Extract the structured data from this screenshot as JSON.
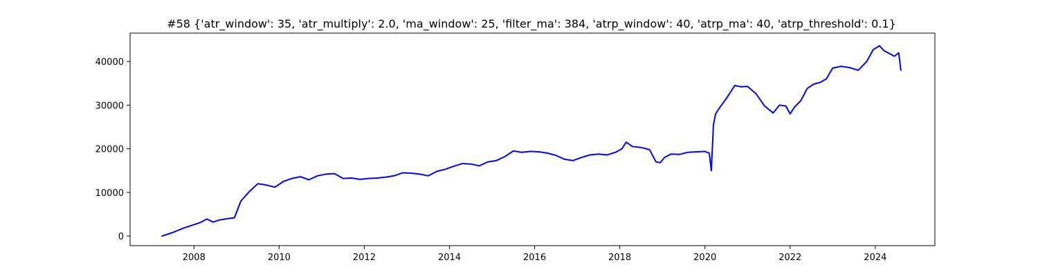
{
  "chart_data": {
    "type": "line",
    "title": "#58 {'atr_window': 35, 'atr_multiply': 2.0, 'ma_window': 25, 'filter_ma': 384, 'atrp_window': 40, 'atrp_ma': 40, 'atrp_threshold': 0.1}",
    "xlabel": "",
    "ylabel": "",
    "xlim": [
      2006.5,
      2025.4
    ],
    "ylim": [
      -2200,
      46500
    ],
    "xticks": [
      2008,
      2010,
      2012,
      2014,
      2016,
      2018,
      2020,
      2022,
      2024
    ],
    "xtick_labels": [
      "2008",
      "2010",
      "2012",
      "2014",
      "2016",
      "2018",
      "2020",
      "2022",
      "2024"
    ],
    "yticks": [
      0,
      10000,
      20000,
      30000,
      40000
    ],
    "ytick_labels": [
      "0",
      "10000",
      "20000",
      "30000",
      "40000"
    ],
    "grid": false,
    "line_color": "#0000ff",
    "series": [
      {
        "x": [
          2007.25,
          2007.5,
          2007.75,
          2008.0,
          2008.15,
          2008.3,
          2008.45,
          2008.6,
          2008.8,
          2008.95,
          2009.1,
          2009.3,
          2009.5,
          2009.7,
          2009.9,
          2010.1,
          2010.3,
          2010.5,
          2010.7,
          2010.9,
          2011.1,
          2011.3,
          2011.5,
          2011.7,
          2011.9,
          2012.1,
          2012.3,
          2012.5,
          2012.7,
          2012.9,
          2013.1,
          2013.3,
          2013.5,
          2013.7,
          2013.9,
          2014.1,
          2014.3,
          2014.5,
          2014.7,
          2014.9,
          2015.1,
          2015.3,
          2015.5,
          2015.7,
          2015.9,
          2016.1,
          2016.3,
          2016.5,
          2016.7,
          2016.9,
          2017.1,
          2017.3,
          2017.5,
          2017.7,
          2017.9,
          2018.05,
          2018.15,
          2018.3,
          2018.5,
          2018.7,
          2018.85,
          2018.95,
          2019.05,
          2019.2,
          2019.4,
          2019.6,
          2019.8,
          2020.0,
          2020.1,
          2020.15,
          2020.2,
          2020.25,
          2020.35,
          2020.5,
          2020.7,
          2020.85,
          2021.0,
          2021.2,
          2021.4,
          2021.6,
          2021.75,
          2021.9,
          2022.0,
          2022.1,
          2022.25,
          2022.4,
          2022.55,
          2022.7,
          2022.85,
          2023.0,
          2023.2,
          2023.4,
          2023.6,
          2023.8,
          2023.95,
          2024.1,
          2024.2,
          2024.3,
          2024.45,
          2024.55,
          2024.6
        ],
        "y": [
          0,
          800,
          1800,
          2600,
          3100,
          3900,
          3200,
          3700,
          4000,
          4200,
          8000,
          10200,
          12000,
          11700,
          11200,
          12500,
          13200,
          13600,
          12900,
          13800,
          14200,
          14300,
          13200,
          13300,
          13000,
          13200,
          13300,
          13500,
          13800,
          14500,
          14400,
          14200,
          13800,
          14800,
          15300,
          16000,
          16600,
          16500,
          16100,
          17000,
          17300,
          18200,
          19500,
          19200,
          19400,
          19300,
          19000,
          18500,
          17600,
          17300,
          18000,
          18600,
          18800,
          18600,
          19200,
          20000,
          21500,
          20500,
          20300,
          19800,
          17000,
          16800,
          18000,
          18800,
          18700,
          19200,
          19300,
          19400,
          19000,
          15000,
          25500,
          28000,
          29500,
          31500,
          34500,
          34200,
          34300,
          32600,
          29800,
          28200,
          30000,
          29800,
          28000,
          29500,
          31000,
          33800,
          34800,
          35200,
          36000,
          38500,
          38900,
          38600,
          38000,
          40000,
          42700,
          43600,
          42500,
          42000,
          41200,
          42000,
          38000
        ]
      }
    ]
  }
}
